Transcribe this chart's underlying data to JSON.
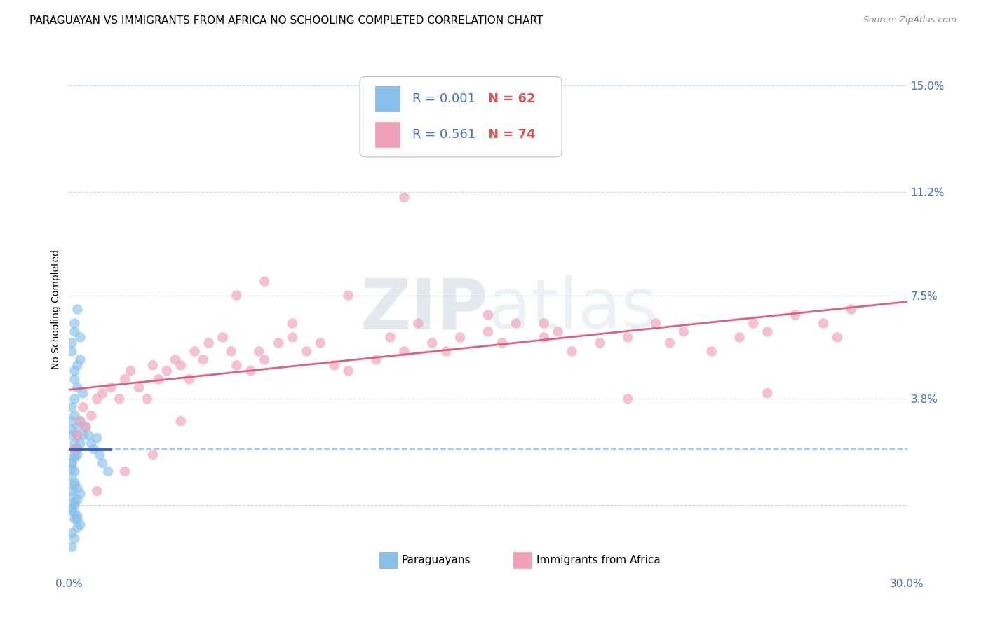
{
  "title": "PARAGUAYAN VS IMMIGRANTS FROM AFRICA NO SCHOOLING COMPLETED CORRELATION CHART",
  "source": "Source: ZipAtlas.com",
  "ylabel": "No Schooling Completed",
  "xlim": [
    0.0,
    0.3
  ],
  "ylim": [
    -0.025,
    0.165
  ],
  "yticks": [
    0.0,
    0.038,
    0.075,
    0.112,
    0.15
  ],
  "ytick_labels": [
    "",
    "3.8%",
    "7.5%",
    "11.2%",
    "15.0%"
  ],
  "xticks": [
    0.0,
    0.3
  ],
  "xtick_labels": [
    "0.0%",
    "30.0%"
  ],
  "legend_r1": "R = 0.001",
  "legend_n1": "N = 62",
  "legend_r2": "R = 0.561",
  "legend_n2": "N = 74",
  "color_paraguayan": "#88c0ea",
  "color_africa": "#f0a0b8",
  "color_trendline_paraguayan": "#3060c0",
  "color_trendline_africa": "#e06080",
  "color_dashed": "#a8c8f0",
  "color_axis_labels": "#4472c4",
  "color_r_text": "#4472c4",
  "color_n_text": "#e05050",
  "background_color": "#ffffff",
  "grid_color": "#c8d4e8",
  "title_fontsize": 11,
  "axis_label_fontsize": 10,
  "tick_fontsize": 11,
  "paraguayan_x": [
    0.003,
    0.004,
    0.002,
    0.001,
    0.005,
    0.002,
    0.001,
    0.003,
    0.002,
    0.004,
    0.001,
    0.003,
    0.002,
    0.001,
    0.004,
    0.002,
    0.003,
    0.001,
    0.002,
    0.001,
    0.003,
    0.002,
    0.001,
    0.004,
    0.002,
    0.001,
    0.003,
    0.002,
    0.001,
    0.005,
    0.002,
    0.003,
    0.001,
    0.002,
    0.004,
    0.001,
    0.003,
    0.002,
    0.001,
    0.002,
    0.003,
    0.001,
    0.002,
    0.004,
    0.001,
    0.003,
    0.002,
    0.001,
    0.002,
    0.003,
    0.007,
    0.008,
    0.006,
    0.009,
    0.01,
    0.011,
    0.012,
    0.014,
    0.002,
    0.003,
    0.001,
    0.002
  ],
  "paraguayan_y": [
    0.05,
    0.06,
    0.045,
    0.055,
    0.04,
    0.038,
    0.035,
    0.042,
    0.048,
    0.052,
    0.03,
    0.028,
    0.032,
    0.025,
    0.022,
    0.02,
    0.018,
    0.015,
    0.012,
    0.01,
    0.025,
    0.022,
    0.027,
    0.03,
    0.018,
    0.015,
    0.02,
    0.017,
    0.013,
    0.025,
    0.008,
    0.006,
    0.005,
    0.007,
    0.004,
    0.003,
    0.002,
    0.001,
    -0.002,
    -0.005,
    -0.008,
    -0.01,
    -0.012,
    -0.007,
    -0.015,
    -0.005,
    -0.003,
    -0.001,
    0.0,
    -0.004,
    0.025,
    0.022,
    0.028,
    0.02,
    0.024,
    0.018,
    0.015,
    0.012,
    0.065,
    0.07,
    0.058,
    0.062
  ],
  "africa_x": [
    0.002,
    0.003,
    0.004,
    0.005,
    0.006,
    0.008,
    0.01,
    0.012,
    0.015,
    0.018,
    0.02,
    0.022,
    0.025,
    0.028,
    0.03,
    0.032,
    0.035,
    0.038,
    0.04,
    0.043,
    0.045,
    0.048,
    0.05,
    0.055,
    0.058,
    0.06,
    0.065,
    0.068,
    0.07,
    0.075,
    0.08,
    0.085,
    0.09,
    0.095,
    0.1,
    0.11,
    0.115,
    0.12,
    0.125,
    0.13,
    0.135,
    0.14,
    0.15,
    0.155,
    0.16,
    0.17,
    0.175,
    0.18,
    0.19,
    0.2,
    0.21,
    0.215,
    0.22,
    0.23,
    0.24,
    0.245,
    0.25,
    0.26,
    0.27,
    0.275,
    0.28,
    0.06,
    0.07,
    0.08,
    0.12,
    0.17,
    0.2,
    0.25,
    0.15,
    0.1,
    0.04,
    0.03,
    0.02,
    0.01
  ],
  "africa_y": [
    0.02,
    0.025,
    0.03,
    0.035,
    0.028,
    0.032,
    0.038,
    0.04,
    0.042,
    0.038,
    0.045,
    0.048,
    0.042,
    0.038,
    0.05,
    0.045,
    0.048,
    0.052,
    0.05,
    0.045,
    0.055,
    0.052,
    0.058,
    0.06,
    0.055,
    0.05,
    0.048,
    0.055,
    0.052,
    0.058,
    0.06,
    0.055,
    0.058,
    0.05,
    0.048,
    0.052,
    0.06,
    0.055,
    0.065,
    0.058,
    0.055,
    0.06,
    0.062,
    0.058,
    0.065,
    0.06,
    0.062,
    0.055,
    0.058,
    0.06,
    0.065,
    0.058,
    0.062,
    0.055,
    0.06,
    0.065,
    0.062,
    0.068,
    0.065,
    0.06,
    0.07,
    0.075,
    0.08,
    0.065,
    0.11,
    0.065,
    0.038,
    0.04,
    0.068,
    0.075,
    0.03,
    0.018,
    0.012,
    0.005
  ]
}
